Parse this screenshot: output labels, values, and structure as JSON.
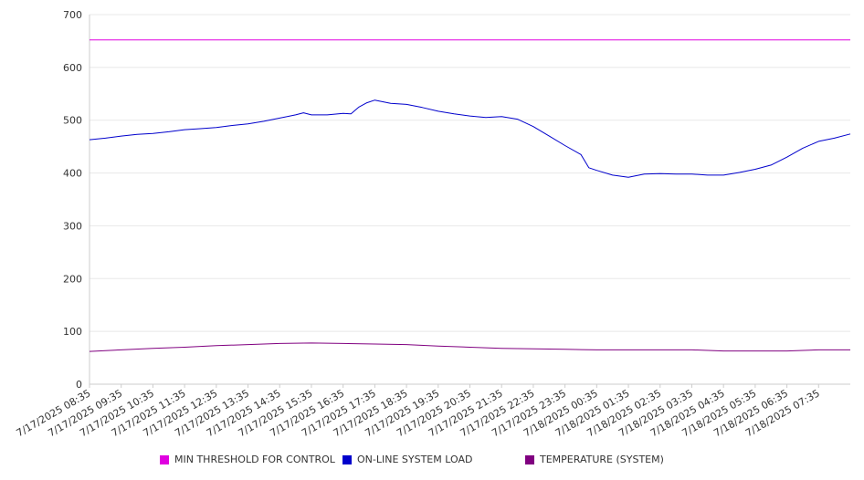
{
  "chart_data": {
    "type": "line",
    "title": "",
    "xlabel": "",
    "ylabel": "",
    "ylim": [
      0,
      700
    ],
    "yticks": [
      0,
      100,
      200,
      300,
      400,
      500,
      600,
      700
    ],
    "grid": true,
    "legend_position": "bottom",
    "x_tick_labels": [
      "7/17/2025 08:35",
      "7/17/2025 09:35",
      "7/17/2025 10:35",
      "7/17/2025 11:35",
      "7/17/2025 12:35",
      "7/17/2025 13:35",
      "7/17/2025 14:35",
      "7/17/2025 15:35",
      "7/17/2025 16:35",
      "7/17/2025 17:35",
      "7/17/2025 18:35",
      "7/17/2025 19:35",
      "7/17/2025 20:35",
      "7/17/2025 21:35",
      "7/17/2025 22:35",
      "7/17/2025 23:35",
      "7/18/2025 00:35",
      "7/18/2025 01:35",
      "7/18/2025 02:35",
      "7/18/2025 03:35",
      "7/18/2025 04:35",
      "7/18/2025 05:35",
      "7/18/2025 06:35",
      "7/18/2025 07:35"
    ],
    "series": [
      {
        "name": "MIN THRESHOLD FOR CONTROL",
        "color": "#e000e0",
        "x": [
          "7/17/2025 08:35",
          "7/18/2025 08:35"
        ],
        "values": [
          652,
          652
        ]
      },
      {
        "name": "ON-LINE SYSTEM LOAD",
        "color": "#0000cc",
        "x": [
          "7/17/2025 08:35",
          "7/17/2025 09:05",
          "7/17/2025 09:35",
          "7/17/2025 10:05",
          "7/17/2025 10:35",
          "7/17/2025 11:05",
          "7/17/2025 11:35",
          "7/17/2025 12:05",
          "7/17/2025 12:35",
          "7/17/2025 13:05",
          "7/17/2025 13:35",
          "7/17/2025 14:05",
          "7/17/2025 14:35",
          "7/17/2025 15:05",
          "7/17/2025 15:20",
          "7/17/2025 15:35",
          "7/17/2025 16:05",
          "7/17/2025 16:35",
          "7/17/2025 16:50",
          "7/17/2025 17:05",
          "7/17/2025 17:20",
          "7/17/2025 17:35",
          "7/17/2025 17:50",
          "7/17/2025 18:05",
          "7/17/2025 18:35",
          "7/17/2025 19:05",
          "7/17/2025 19:35",
          "7/17/2025 20:05",
          "7/17/2025 20:35",
          "7/17/2025 21:05",
          "7/17/2025 21:35",
          "7/17/2025 22:05",
          "7/17/2025 22:35",
          "7/17/2025 23:05",
          "7/17/2025 23:35",
          "7/18/2025 00:05",
          "7/18/2025 00:20",
          "7/18/2025 00:35",
          "7/18/2025 01:05",
          "7/18/2025 01:35",
          "7/18/2025 02:05",
          "7/18/2025 02:35",
          "7/18/2025 03:05",
          "7/18/2025 03:35",
          "7/18/2025 04:05",
          "7/18/2025 04:35",
          "7/18/2025 05:05",
          "7/18/2025 05:35",
          "7/18/2025 06:05",
          "7/18/2025 06:35",
          "7/18/2025 07:05",
          "7/18/2025 07:35",
          "7/18/2025 08:05",
          "7/18/2025 08:35"
        ],
        "values": [
          463,
          466,
          470,
          473,
          475,
          478,
          482,
          484,
          486,
          490,
          493,
          498,
          504,
          510,
          514,
          510,
          510,
          513,
          512,
          525,
          533,
          538,
          535,
          532,
          530,
          524,
          517,
          512,
          508,
          505,
          507,
          502,
          488,
          470,
          452,
          435,
          410,
          405,
          396,
          392,
          398,
          399,
          398,
          398,
          396,
          396,
          401,
          407,
          415,
          430,
          447,
          460,
          466,
          474
        ]
      },
      {
        "name": "TEMPERATURE (SYSTEM)",
        "color": "#800080",
        "x": [
          "7/17/2025 08:35",
          "7/17/2025 09:35",
          "7/17/2025 10:35",
          "7/17/2025 11:35",
          "7/17/2025 12:35",
          "7/17/2025 13:35",
          "7/17/2025 14:35",
          "7/17/2025 15:35",
          "7/17/2025 16:35",
          "7/17/2025 17:35",
          "7/17/2025 18:35",
          "7/17/2025 19:35",
          "7/17/2025 20:35",
          "7/17/2025 21:35",
          "7/17/2025 22:35",
          "7/17/2025 23:35",
          "7/18/2025 00:35",
          "7/18/2025 01:35",
          "7/18/2025 02:35",
          "7/18/2025 03:35",
          "7/18/2025 04:35",
          "7/18/2025 05:35",
          "7/18/2025 06:35",
          "7/18/2025 07:35",
          "7/18/2025 08:35"
        ],
        "values": [
          62,
          65,
          68,
          70,
          73,
          75,
          77,
          78,
          77,
          76,
          75,
          72,
          70,
          68,
          67,
          66,
          65,
          65,
          65,
          65,
          63,
          63,
          63,
          65,
          65
        ]
      }
    ]
  }
}
